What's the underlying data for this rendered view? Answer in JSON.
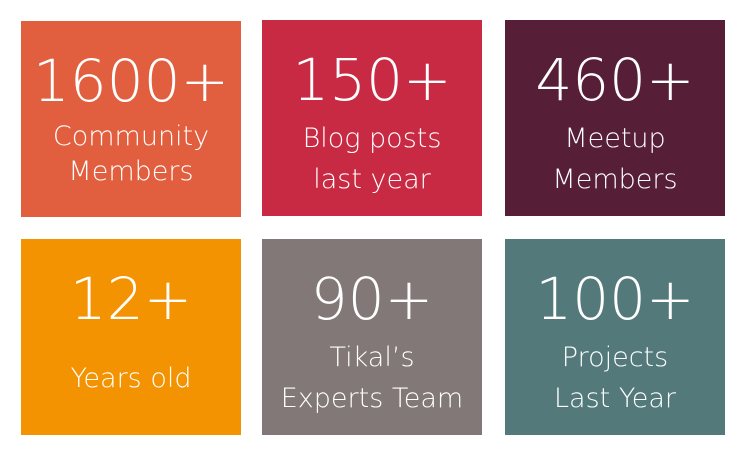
{
  "tiles": [
    {
      "number": "1600+",
      "line1": "Community",
      "line2": "Members",
      "color": "#e15f3e"
    },
    {
      "number": "150+",
      "line1": "Blog posts",
      "line2": "last year",
      "color": "#c82a43"
    },
    {
      "number": "460+",
      "line1": "Meetup",
      "line2": "Members",
      "color": "#561f37"
    },
    {
      "number": "12+",
      "line1": "Years old",
      "line2": "",
      "color": "#f39301"
    },
    {
      "number": "90+",
      "line1": "Tikal’s",
      "line2": "Experts Team",
      "color": "#827877"
    },
    {
      "number": "100+",
      "line1": "Projects",
      "line2": "Last Year",
      "color": "#53797b"
    }
  ]
}
